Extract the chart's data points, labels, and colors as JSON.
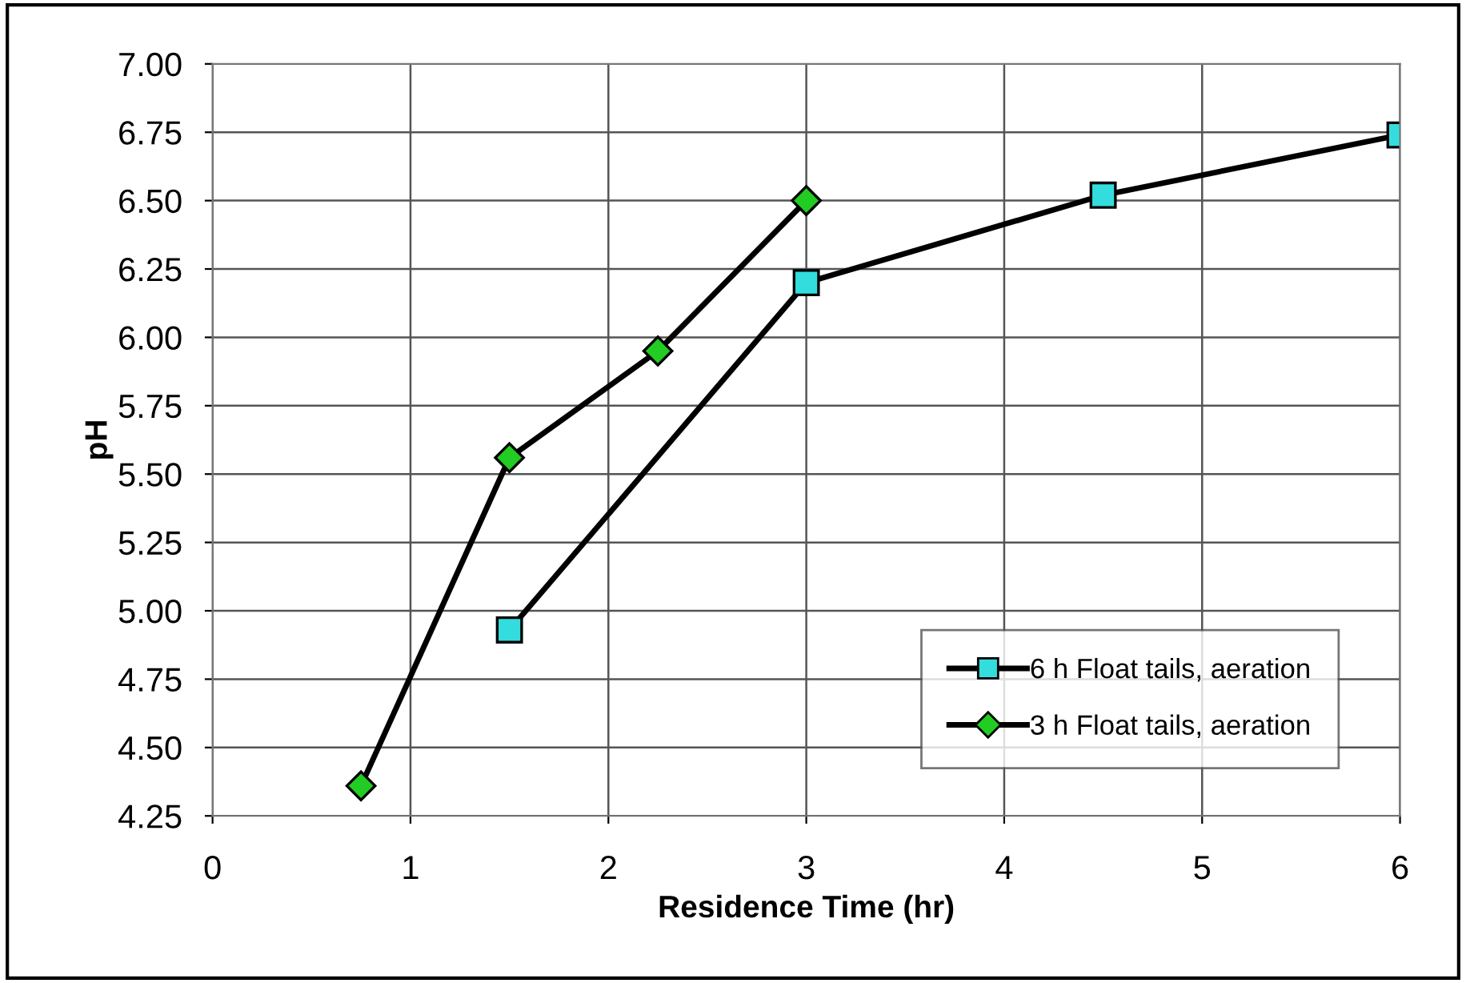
{
  "chart_data": {
    "type": "line",
    "xlabel": "Residence Time (hr)",
    "ylabel": "pH",
    "xlim": [
      0,
      6
    ],
    "xticks": [
      0,
      1,
      2,
      3,
      4,
      5,
      6
    ],
    "ylim": [
      4.25,
      7.0
    ],
    "yticks": [
      {
        "value": 4.25,
        "label": "4.25"
      },
      {
        "value": 4.5,
        "label": "4.50"
      },
      {
        "value": 4.75,
        "label": "4.75"
      },
      {
        "value": 5.0,
        "label": "5.00"
      },
      {
        "value": 5.25,
        "label": "5.25"
      },
      {
        "value": 5.5,
        "label": "5.50"
      },
      {
        "value": 5.75,
        "label": "5.75"
      },
      {
        "value": 6.0,
        "label": "6.00"
      },
      {
        "value": 6.25,
        "label": "6.25"
      },
      {
        "value": 6.5,
        "label": "6.50"
      },
      {
        "value": 6.75,
        "label": "6.75"
      },
      {
        "value": 7.0,
        "label": "7.00"
      }
    ],
    "grid": true,
    "legend": "bottom right",
    "line_style": "solid",
    "series": [
      {
        "name": "6 h Float tails, aeration",
        "color": "#33dddd",
        "marker": "square",
        "x": [
          1.5,
          3,
          4.5,
          6
        ],
        "values": [
          4.93,
          6.2,
          6.52,
          6.74
        ]
      },
      {
        "name": "3 h Float tails, aeration",
        "color": "#22cc22",
        "marker": "diamond",
        "x": [
          0.75,
          1.5,
          2.25,
          3
        ],
        "values": [
          4.36,
          5.56,
          5.95,
          6.5
        ]
      }
    ]
  }
}
